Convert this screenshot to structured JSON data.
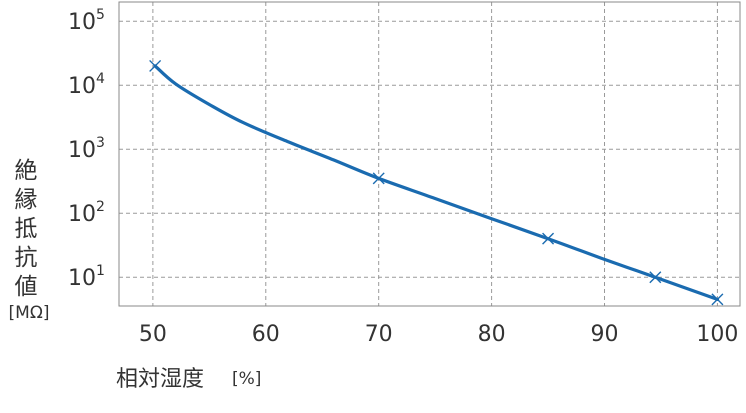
{
  "chart_data": {
    "type": "line",
    "scale_y": "log",
    "grid": true,
    "xlabel": "相対湿度",
    "xlabel_unit": "[%]",
    "ylabel": "絶縁抵抗値",
    "ylabel_unit": "[MΩ]",
    "xlim": [
      47,
      102
    ],
    "ylim_exp": [
      0.55,
      5.3
    ],
    "x_ticks": [
      "50",
      "60",
      "70",
      "80",
      "90",
      "100"
    ],
    "x_tick_values": [
      50,
      60,
      70,
      80,
      90,
      100
    ],
    "y_ticks": [
      {
        "base": "10",
        "exp": "1"
      },
      {
        "base": "10",
        "exp": "2"
      },
      {
        "base": "10",
        "exp": "3"
      },
      {
        "base": "10",
        "exp": "4"
      },
      {
        "base": "10",
        "exp": "5"
      }
    ],
    "y_tick_exponents": [
      1,
      2,
      3,
      4,
      5
    ],
    "series": [
      {
        "color": "#1a6bb0",
        "marker": "x",
        "markers": [
          {
            "x": 50.2,
            "y": 20000
          },
          {
            "x": 70,
            "y": 350
          },
          {
            "x": 85,
            "y": 40
          },
          {
            "x": 94.5,
            "y": 10
          },
          {
            "x": 100,
            "y": 4.5
          }
        ],
        "curve": [
          {
            "x": 50.2,
            "y": 20000
          },
          {
            "x": 52,
            "y": 10500
          },
          {
            "x": 55,
            "y": 5000
          },
          {
            "x": 58,
            "y": 2600
          },
          {
            "x": 62,
            "y": 1300
          },
          {
            "x": 66,
            "y": 680
          },
          {
            "x": 70,
            "y": 350
          },
          {
            "x": 75,
            "y": 170
          },
          {
            "x": 80,
            "y": 82
          },
          {
            "x": 85,
            "y": 40
          },
          {
            "x": 90,
            "y": 19
          },
          {
            "x": 94.5,
            "y": 10
          },
          {
            "x": 100,
            "y": 4.5
          }
        ]
      }
    ]
  }
}
